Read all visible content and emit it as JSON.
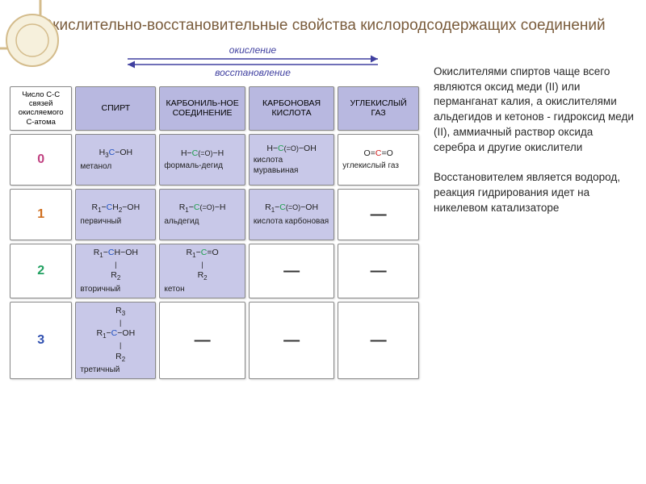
{
  "title": "Окислительно-восстановительные свойства кислородсодержащих соединений",
  "arrows": {
    "top_label": "окисление",
    "bottom_label": "восстановление"
  },
  "headers": {
    "col0": "Число С-С связей окисляемого С-атома",
    "col1": "СПИРТ",
    "col2": "КАРБОНИЛЬ-НОЕ СОЕДИНЕНИЕ",
    "col3": "КАРБОНОВАЯ КИСЛОТА",
    "col4": "УГЛЕКИСЛЫЙ ГАЗ"
  },
  "rows": [
    {
      "num": "0",
      "num_class": "r0",
      "c1": {
        "bg": "lavender",
        "formula_html": "H<span class='sub'>3</span><span class='c-blue'>C</span>−OH",
        "label": "метанол"
      },
      "c2": {
        "bg": "lavender",
        "formula_html": "H−<span class='c-green'>C</span><span style='font-size:9px'>(=O)</span>−H",
        "label": "формаль-дегид"
      },
      "c3": {
        "bg": "lavender",
        "formula_html": "H−<span class='c-green'>C</span><span style='font-size:9px'>(=O)</span>−OH",
        "label": "кислота муравьиная"
      },
      "c4": {
        "bg": "white",
        "formula_html": "O=<span class='c-red'>C</span>=O",
        "label": "углекислый газ"
      }
    },
    {
      "num": "1",
      "num_class": "r1",
      "c1": {
        "bg": "lavender",
        "formula_html": "R<span class='sub'>1</span>−<span class='c-blue'>C</span>H<span class='sub'>2</span>−OH",
        "label": "первичный"
      },
      "c2": {
        "bg": "lavender",
        "formula_html": "R<span class='sub'>1</span>−<span class='c-green'>C</span><span style='font-size:9px'>(=O)</span>−H",
        "label": "альдегид"
      },
      "c3": {
        "bg": "lavender",
        "formula_html": "R<span class='sub'>1</span>−<span class='c-green'>C</span><span style='font-size:9px'>(=O)</span>−OH",
        "label": "кислота карбоновая"
      },
      "c4": {
        "bg": "white",
        "dash": true
      }
    },
    {
      "num": "2",
      "num_class": "r2",
      "c1": {
        "bg": "lavender",
        "formula_html": "R<span class='sub'>1</span>−<span class='c-blue'>C</span>H−OH<br><span style='font-size:9px'>|</span><br>R<span class='sub'>2</span>",
        "label": "вторичный"
      },
      "c2": {
        "bg": "lavender",
        "formula_html": "R<span class='sub'>1</span>−<span class='c-green'>C</span>=O<br><span style='font-size:9px'>|</span><br>R<span class='sub'>2</span>",
        "label": "кетон"
      },
      "c3": {
        "bg": "white",
        "dash": true
      },
      "c4": {
        "bg": "white",
        "dash": true
      }
    },
    {
      "num": "3",
      "num_class": "r3",
      "c1": {
        "bg": "lavender",
        "formula_html": "&nbsp;&nbsp;&nbsp;&nbsp;R<span class='sub'>3</span><br>&nbsp;&nbsp;&nbsp;&nbsp;<span style='font-size:9px'>|</span><br>R<span class='sub'>1</span>−<span class='c-blue'>C</span>−OH<br>&nbsp;&nbsp;&nbsp;&nbsp;<span style='font-size:9px'>|</span><br>&nbsp;&nbsp;&nbsp;&nbsp;R<span class='sub'>2</span>",
        "label": "третичный"
      },
      "c2": {
        "bg": "white",
        "dash": true
      },
      "c3": {
        "bg": "white",
        "dash": true
      },
      "c4": {
        "bg": "white",
        "dash": true
      }
    }
  ],
  "side_text": {
    "p1": "Окислителями спиртов чаще всего являются оксид меди (II) или перманганат калия, а окислителями альдегидов и кетонов - гидроксид меди (II), аммиачный раствор оксида серебра и другие окислители",
    "p2": "Восстановителем является водород, реакция гидрирования идет на никелевом катализаторе"
  },
  "colors": {
    "title_color": "#7a5c3c",
    "header_bg": "#b8b8e0",
    "cell_lavender": "#c8c8e8",
    "cell_white": "#ffffff",
    "row_colors": [
      "#c04080",
      "#d07020",
      "#20a060",
      "#3050b0"
    ],
    "arrow_color": "#4040a0",
    "decorator_stroke": "#d4bc8c",
    "decorator_fill": "#f0e4c8"
  }
}
